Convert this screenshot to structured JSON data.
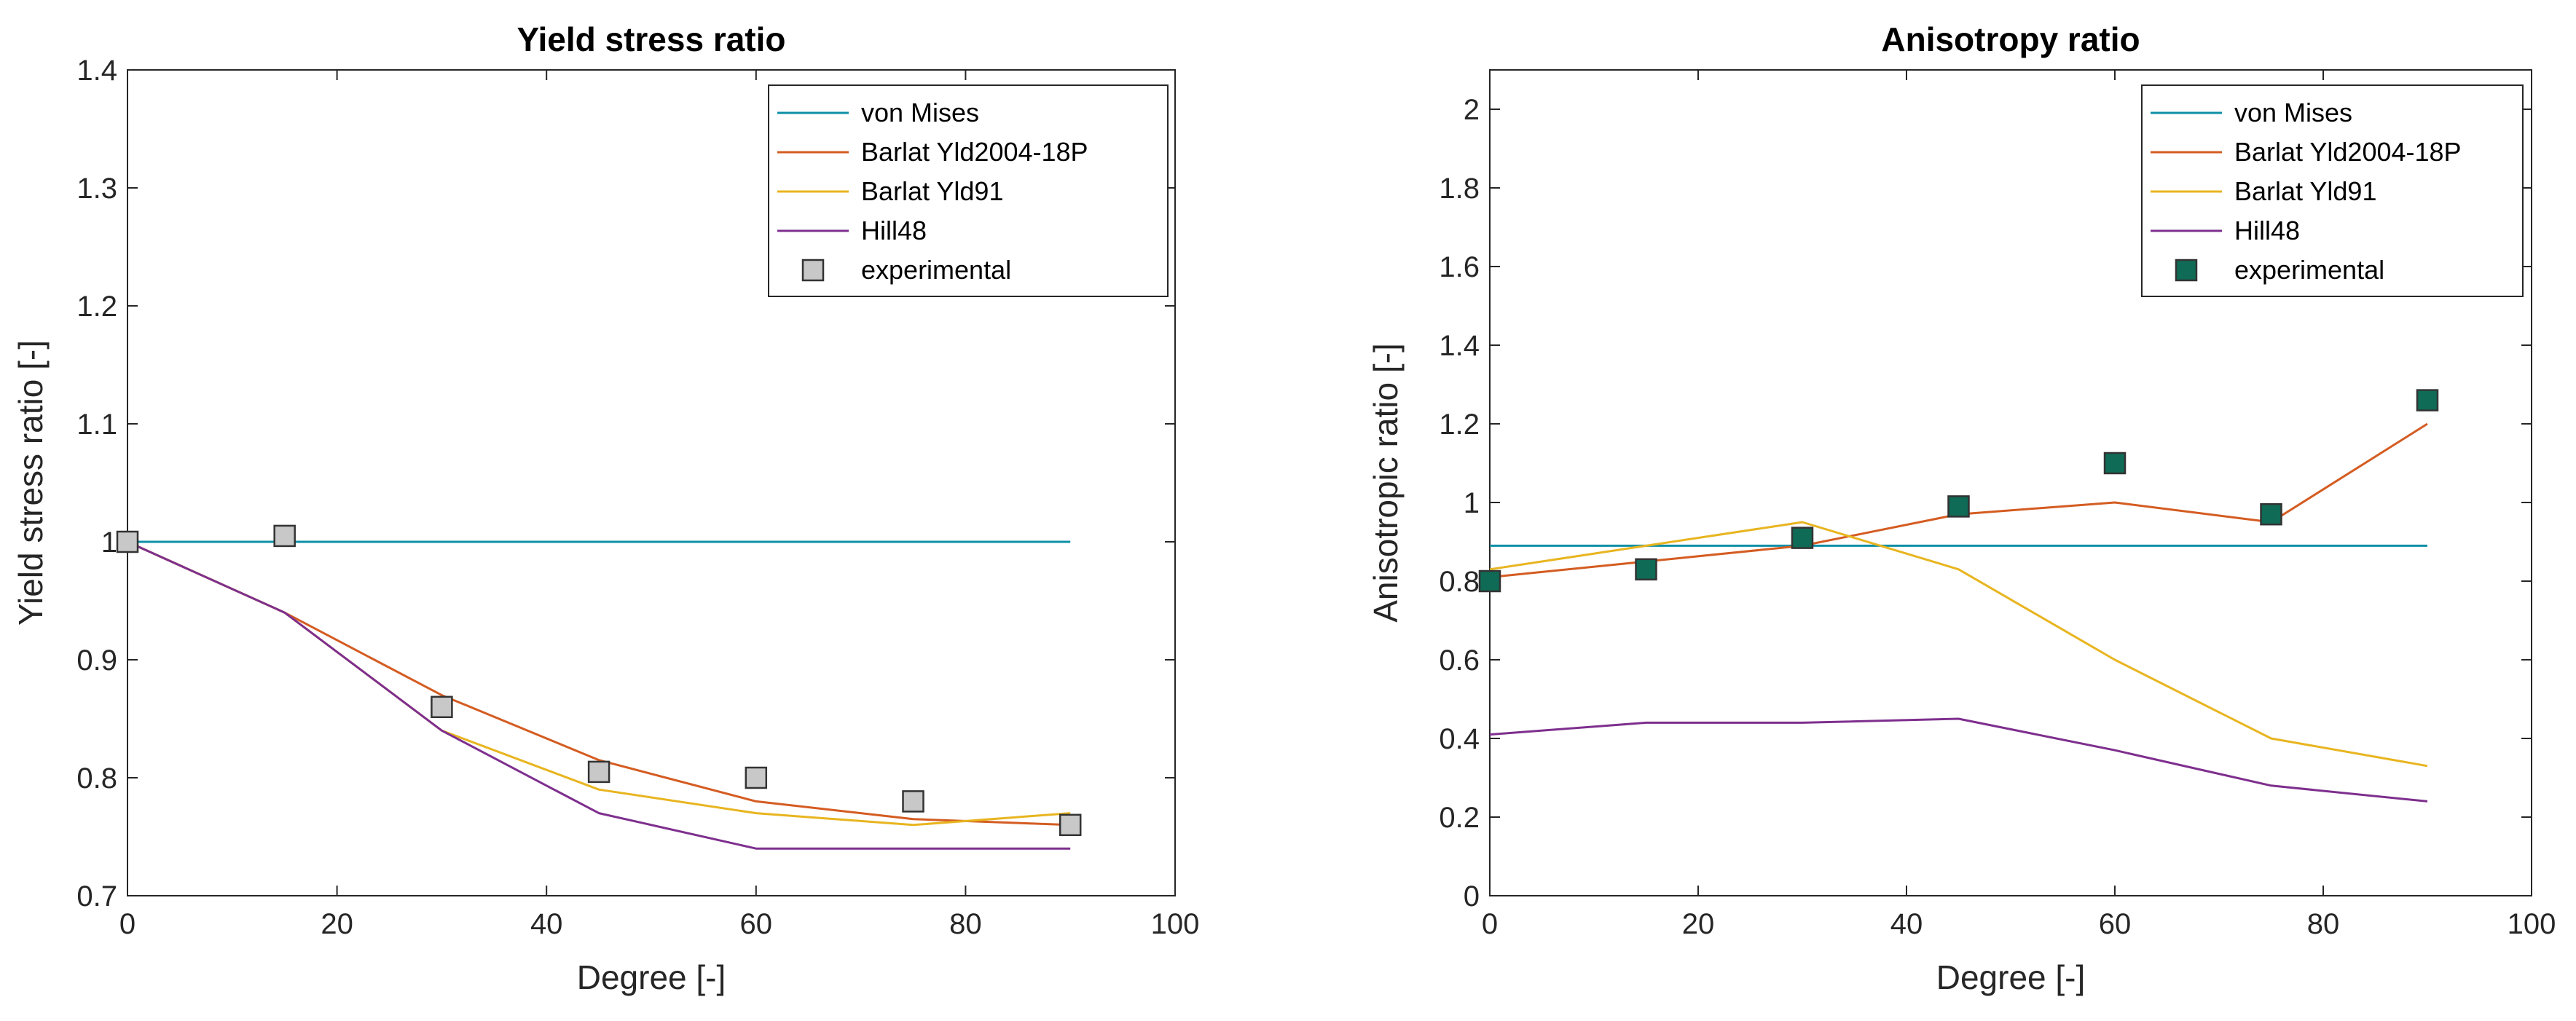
{
  "chart_data": [
    {
      "type": "line",
      "title": "Yield stress ratio",
      "xlabel": "Degree [-]",
      "ylabel": "Yield stress ratio  [-]",
      "xlim": [
        0,
        100
      ],
      "ylim": [
        0.7,
        1.4
      ],
      "xticks": [
        0,
        20,
        40,
        60,
        80,
        100
      ],
      "yticks": [
        0.7,
        0.8,
        0.9,
        1,
        1.1,
        1.2,
        1.3,
        1.4
      ],
      "ytick_labels": [
        "0.7",
        "0.8",
        "0.9",
        "1",
        "1.1",
        "1.2",
        "1.3",
        "1.4"
      ],
      "legend_position": "top-right",
      "series": [
        {
          "name": "von Mises",
          "color": "#0e8fa7",
          "kind": "line",
          "x": [
            0,
            90
          ],
          "y": [
            1.0,
            1.0
          ]
        },
        {
          "name": "Barlat Yld2004-18P",
          "color": "#d45c22",
          "kind": "line",
          "x": [
            0,
            15,
            30,
            45,
            60,
            75,
            90
          ],
          "y": [
            1.0,
            0.94,
            0.87,
            0.815,
            0.78,
            0.765,
            0.76
          ]
        },
        {
          "name": "Barlat Yld91",
          "color": "#e8b520",
          "kind": "line",
          "x": [
            0,
            15,
            30,
            45,
            60,
            75,
            90
          ],
          "y": [
            1.0,
            0.94,
            0.84,
            0.79,
            0.77,
            0.76,
            0.77
          ]
        },
        {
          "name": "Hill48",
          "color": "#7e2f8e",
          "kind": "line",
          "x": [
            0,
            15,
            30,
            45,
            60,
            75,
            90
          ],
          "y": [
            1.0,
            0.94,
            0.84,
            0.77,
            0.74,
            0.74,
            0.74
          ]
        },
        {
          "name": "experimental",
          "color": "#c8c8c8",
          "kind": "marker",
          "x": [
            0,
            15,
            30,
            45,
            60,
            75,
            90
          ],
          "y": [
            1.0,
            1.005,
            0.86,
            0.805,
            0.8,
            0.78,
            0.76
          ]
        }
      ]
    },
    {
      "type": "line",
      "title": "Anisotropy ratio",
      "xlabel": "Degree [-]",
      "ylabel": "Anisotropic ratio  [-]",
      "xlim": [
        0,
        100
      ],
      "ylim": [
        0,
        2.1
      ],
      "xticks": [
        0,
        20,
        40,
        60,
        80,
        100
      ],
      "yticks": [
        0,
        0.2,
        0.4,
        0.6,
        0.8,
        1,
        1.2,
        1.4,
        1.6,
        1.8,
        2
      ],
      "ytick_labels": [
        "0",
        "0.2",
        "0.4",
        "0.6",
        "0.8",
        "1",
        "1.2",
        "1.4",
        "1.6",
        "1.8",
        "2"
      ],
      "legend_position": "top-right",
      "series": [
        {
          "name": "von Mises",
          "color": "#0e8fa7",
          "kind": "line",
          "x": [
            0,
            90
          ],
          "y": [
            0.89,
            0.89
          ]
        },
        {
          "name": "Barlat Yld2004-18P",
          "color": "#d45c22",
          "kind": "line",
          "x": [
            0,
            15,
            30,
            45,
            60,
            75,
            90
          ],
          "y": [
            0.81,
            0.85,
            0.89,
            0.97,
            1.0,
            0.95,
            1.2
          ]
        },
        {
          "name": "Barlat Yld91",
          "color": "#e8b520",
          "kind": "line",
          "x": [
            0,
            15,
            30,
            45,
            60,
            75,
            90
          ],
          "y": [
            0.83,
            0.89,
            0.95,
            0.83,
            0.6,
            0.4,
            0.33
          ]
        },
        {
          "name": "Hill48",
          "color": "#7e2f8e",
          "kind": "line",
          "x": [
            0,
            15,
            30,
            45,
            60,
            75,
            90
          ],
          "y": [
            0.41,
            0.44,
            0.44,
            0.45,
            0.37,
            0.28,
            0.24
          ]
        },
        {
          "name": "experimental",
          "color": "#0f6b55",
          "kind": "marker",
          "x": [
            0,
            15,
            30,
            45,
            60,
            75,
            90
          ],
          "y": [
            0.8,
            0.83,
            0.91,
            0.99,
            1.1,
            0.97,
            1.26
          ]
        }
      ]
    }
  ]
}
